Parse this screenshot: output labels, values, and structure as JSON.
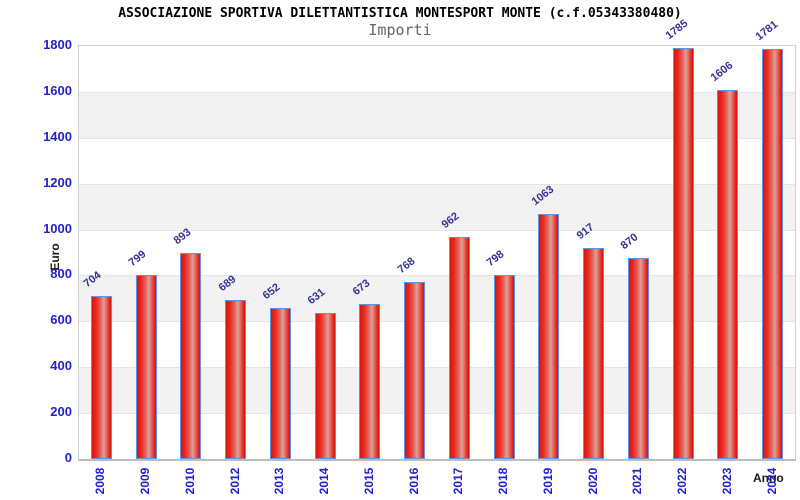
{
  "chart": {
    "title": "ASSOCIAZIONE SPORTIVA DILETTANTISTICA MONTESPORT MONTE (c.f.05343380480)",
    "subtitle": "Importi",
    "ylabel": "Euro",
    "xlabel": "Anno"
  },
  "chart_data": {
    "type": "bar",
    "title": "ASSOCIAZIONE SPORTIVA DILETTANTISTICA MONTESPORT MONTE (c.f.05343380480)",
    "subtitle": "Importi",
    "xlabel": "Anno",
    "ylabel": "Euro",
    "categories": [
      "2008",
      "2009",
      "2010",
      "2012",
      "2013",
      "2014",
      "2015",
      "2016",
      "2017",
      "2018",
      "2019",
      "2020",
      "2021",
      "2022",
      "2023",
      "2024"
    ],
    "values": [
      704,
      799,
      893,
      689,
      652,
      631,
      673,
      768,
      962,
      798,
      1063,
      917,
      870,
      1785,
      1606,
      1781
    ],
    "ylim": [
      0,
      1800
    ],
    "yticks": [
      0,
      200,
      400,
      600,
      800,
      1000,
      1200,
      1400,
      1600,
      1800
    ],
    "legend": "none",
    "grid": "horizontal alternating bands",
    "colors": {
      "bar_fill_edge": "#e01b12",
      "bar_fill_center": "#d8a29a",
      "bar_border": "#5f93e8",
      "tick_label_blue": "#2222cc",
      "value_label_blue": "#333399",
      "band_gray": "#f2f2f2",
      "gridline": "#e4e4e4",
      "subtitle_gray": "#666666"
    }
  }
}
